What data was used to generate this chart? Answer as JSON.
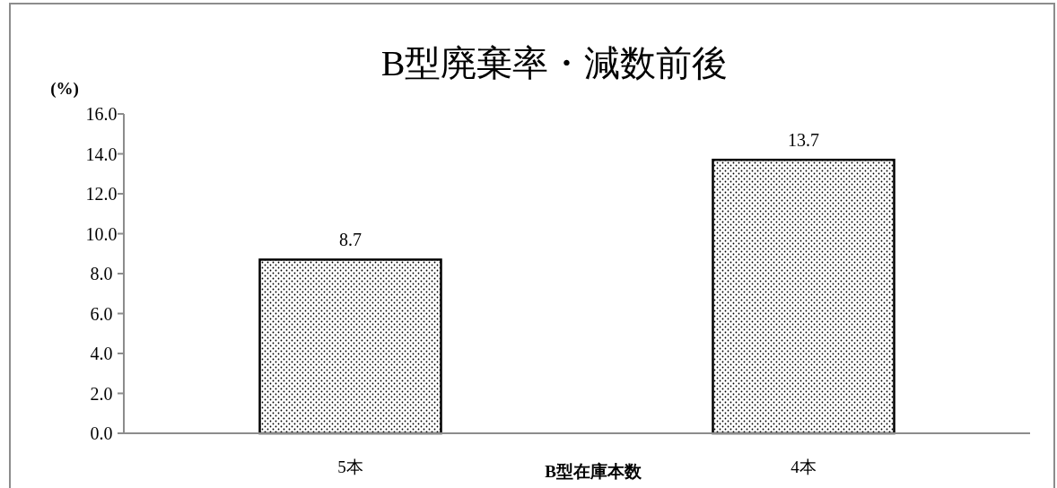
{
  "chart_data": {
    "type": "bar",
    "title": "B型廃棄率・減数前後",
    "xlabel": "B型在庫本数",
    "ylabel": "(%)",
    "categories": [
      "5本",
      "4本"
    ],
    "values": [
      8.7,
      13.7
    ],
    "color": "#000000",
    "ylim": [
      0,
      16
    ],
    "yticks": [
      {
        "value": 0,
        "label": "0.0"
      },
      {
        "value": 2,
        "label": "2.0"
      },
      {
        "value": 4,
        "label": "4.0"
      },
      {
        "value": 6,
        "label": "6.0"
      },
      {
        "value": 8,
        "label": "8.0"
      },
      {
        "value": 10,
        "label": "10.0"
      },
      {
        "value": 12,
        "label": "12.0"
      },
      {
        "value": 14,
        "label": "14.0"
      },
      {
        "value": 16,
        "label": "16.0"
      }
    ],
    "data_labels": true,
    "grid": false
  }
}
